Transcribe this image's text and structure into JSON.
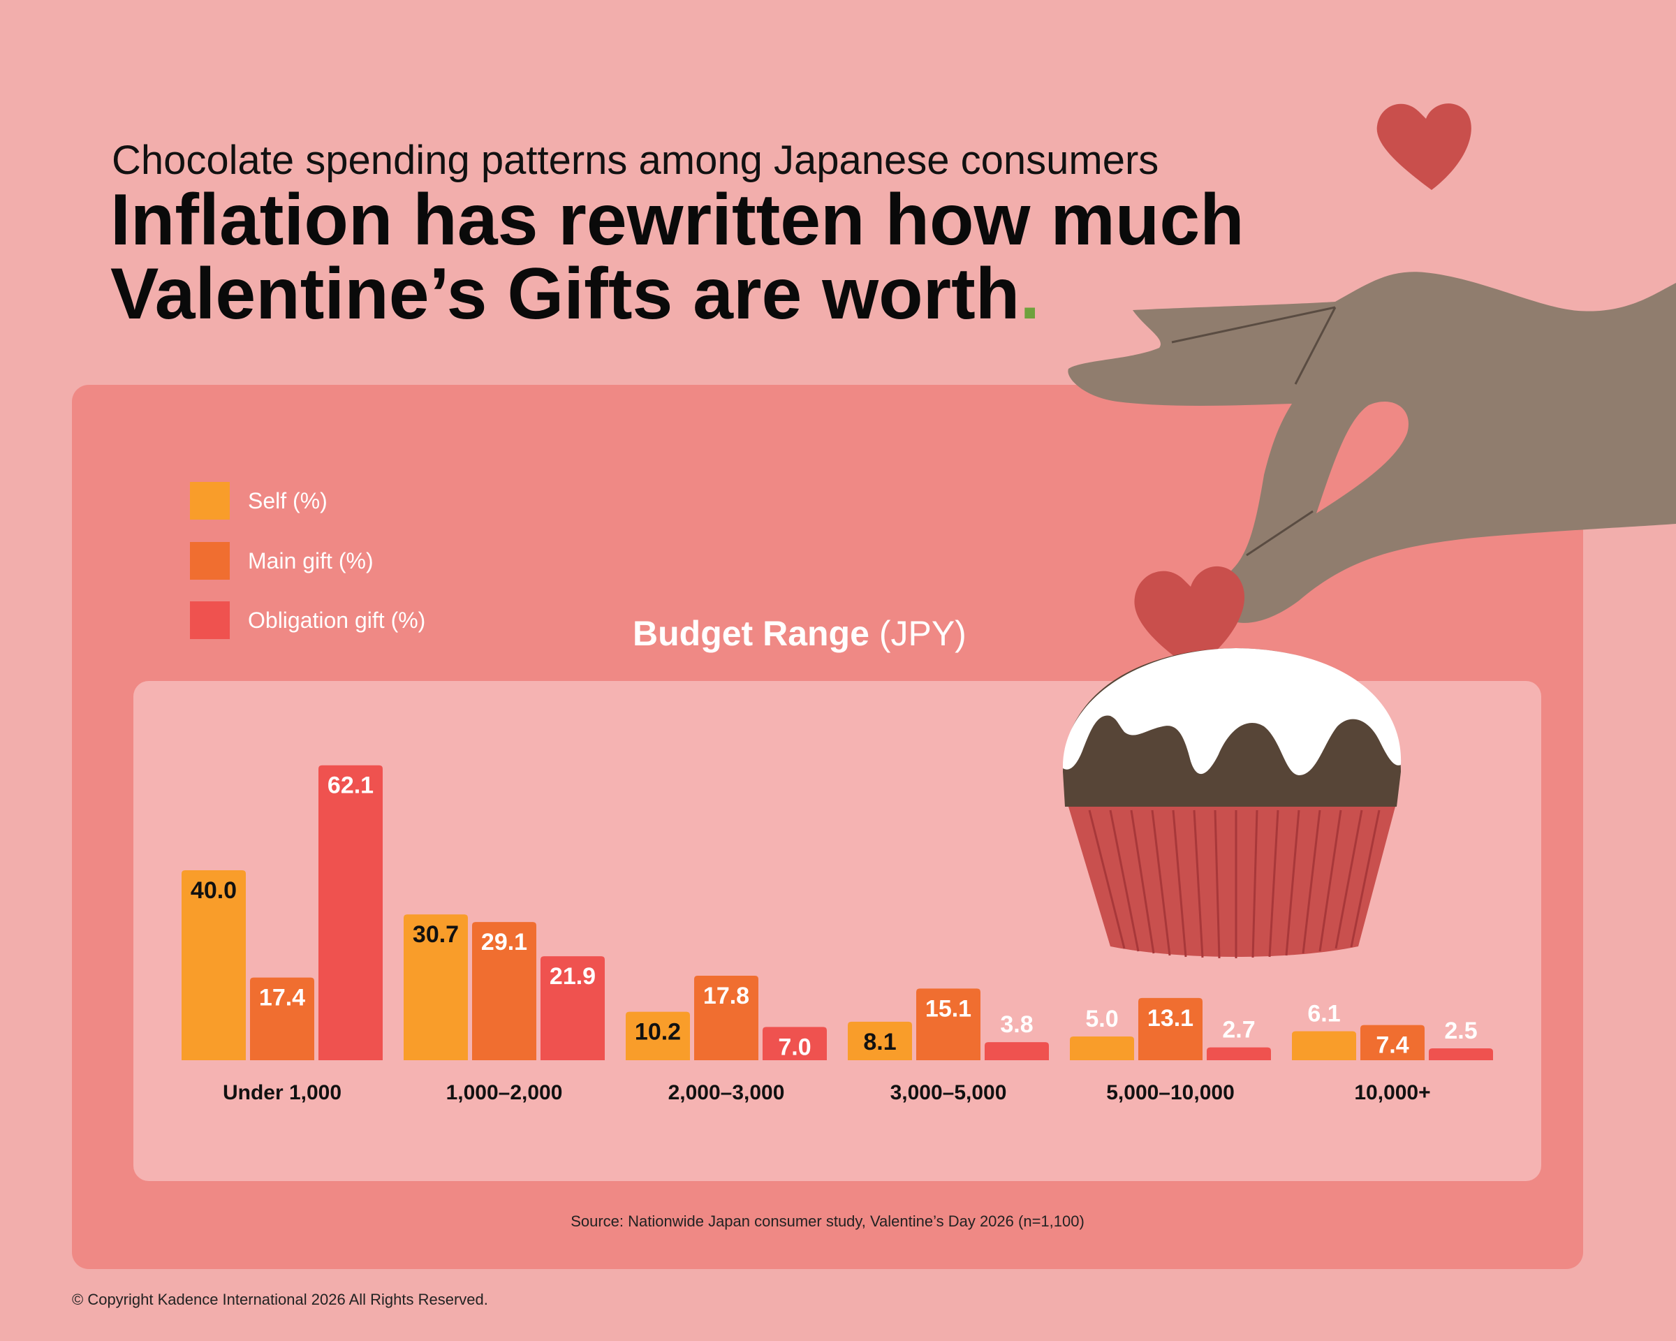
{
  "header": {
    "subtitle": "Chocolate spending patterns among Japanese consumers",
    "headline_line1": "Inflation has rewritten how much",
    "headline_line2": "Valentine’s Gifts are worth",
    "headline_dot": "."
  },
  "colors": {
    "background": "#f2aeac",
    "panel": "#ef8985",
    "chart_area": "#f5b3b2",
    "self": "#f99d2a",
    "main_gift": "#f06e30",
    "obligation_gift": "#ef524f",
    "accent_dot": "#6fa13d"
  },
  "illustration": {
    "icons": [
      "heart-icon",
      "hand-illustration",
      "cupcake-illustration"
    ]
  },
  "chart_data": {
    "type": "bar",
    "title_bold": "Budget Range",
    "title_unit": "(JPY)",
    "categories": [
      "Under 1,000",
      "1,000–2,000",
      "2,000–3,000",
      "3,000–5,000",
      "5,000–10,000",
      "10,000+"
    ],
    "series": [
      {
        "name": "Self (%)",
        "values": [
          40.0,
          30.7,
          10.2,
          8.1,
          5.0,
          6.1
        ]
      },
      {
        "name": "Main gift (%)",
        "values": [
          17.4,
          29.1,
          17.8,
          15.1,
          13.1,
          7.4
        ]
      },
      {
        "name": "Obligation gift (%)",
        "values": [
          62.1,
          21.9,
          7.0,
          3.8,
          2.7,
          2.5
        ]
      }
    ],
    "data_labels": [
      [
        "40.0",
        "30.7",
        "10.2",
        "8.1",
        "5.0",
        "6.1"
      ],
      [
        "17.4",
        "29.1",
        "17.8",
        "15.1",
        "13.1",
        "7.4"
      ],
      [
        "62.1",
        "21.9",
        "7.0",
        "3.8",
        "2.7",
        "2.5"
      ]
    ],
    "legend_placement": "top-left",
    "grid": false,
    "y_axis_visible": false
  },
  "footer": {
    "source": "Source: Nationwide Japan consumer study, Valentine’s Day 2026 (n=1,100)",
    "copyright": "© Copyright Kadence International 2026 All Rights Reserved."
  }
}
